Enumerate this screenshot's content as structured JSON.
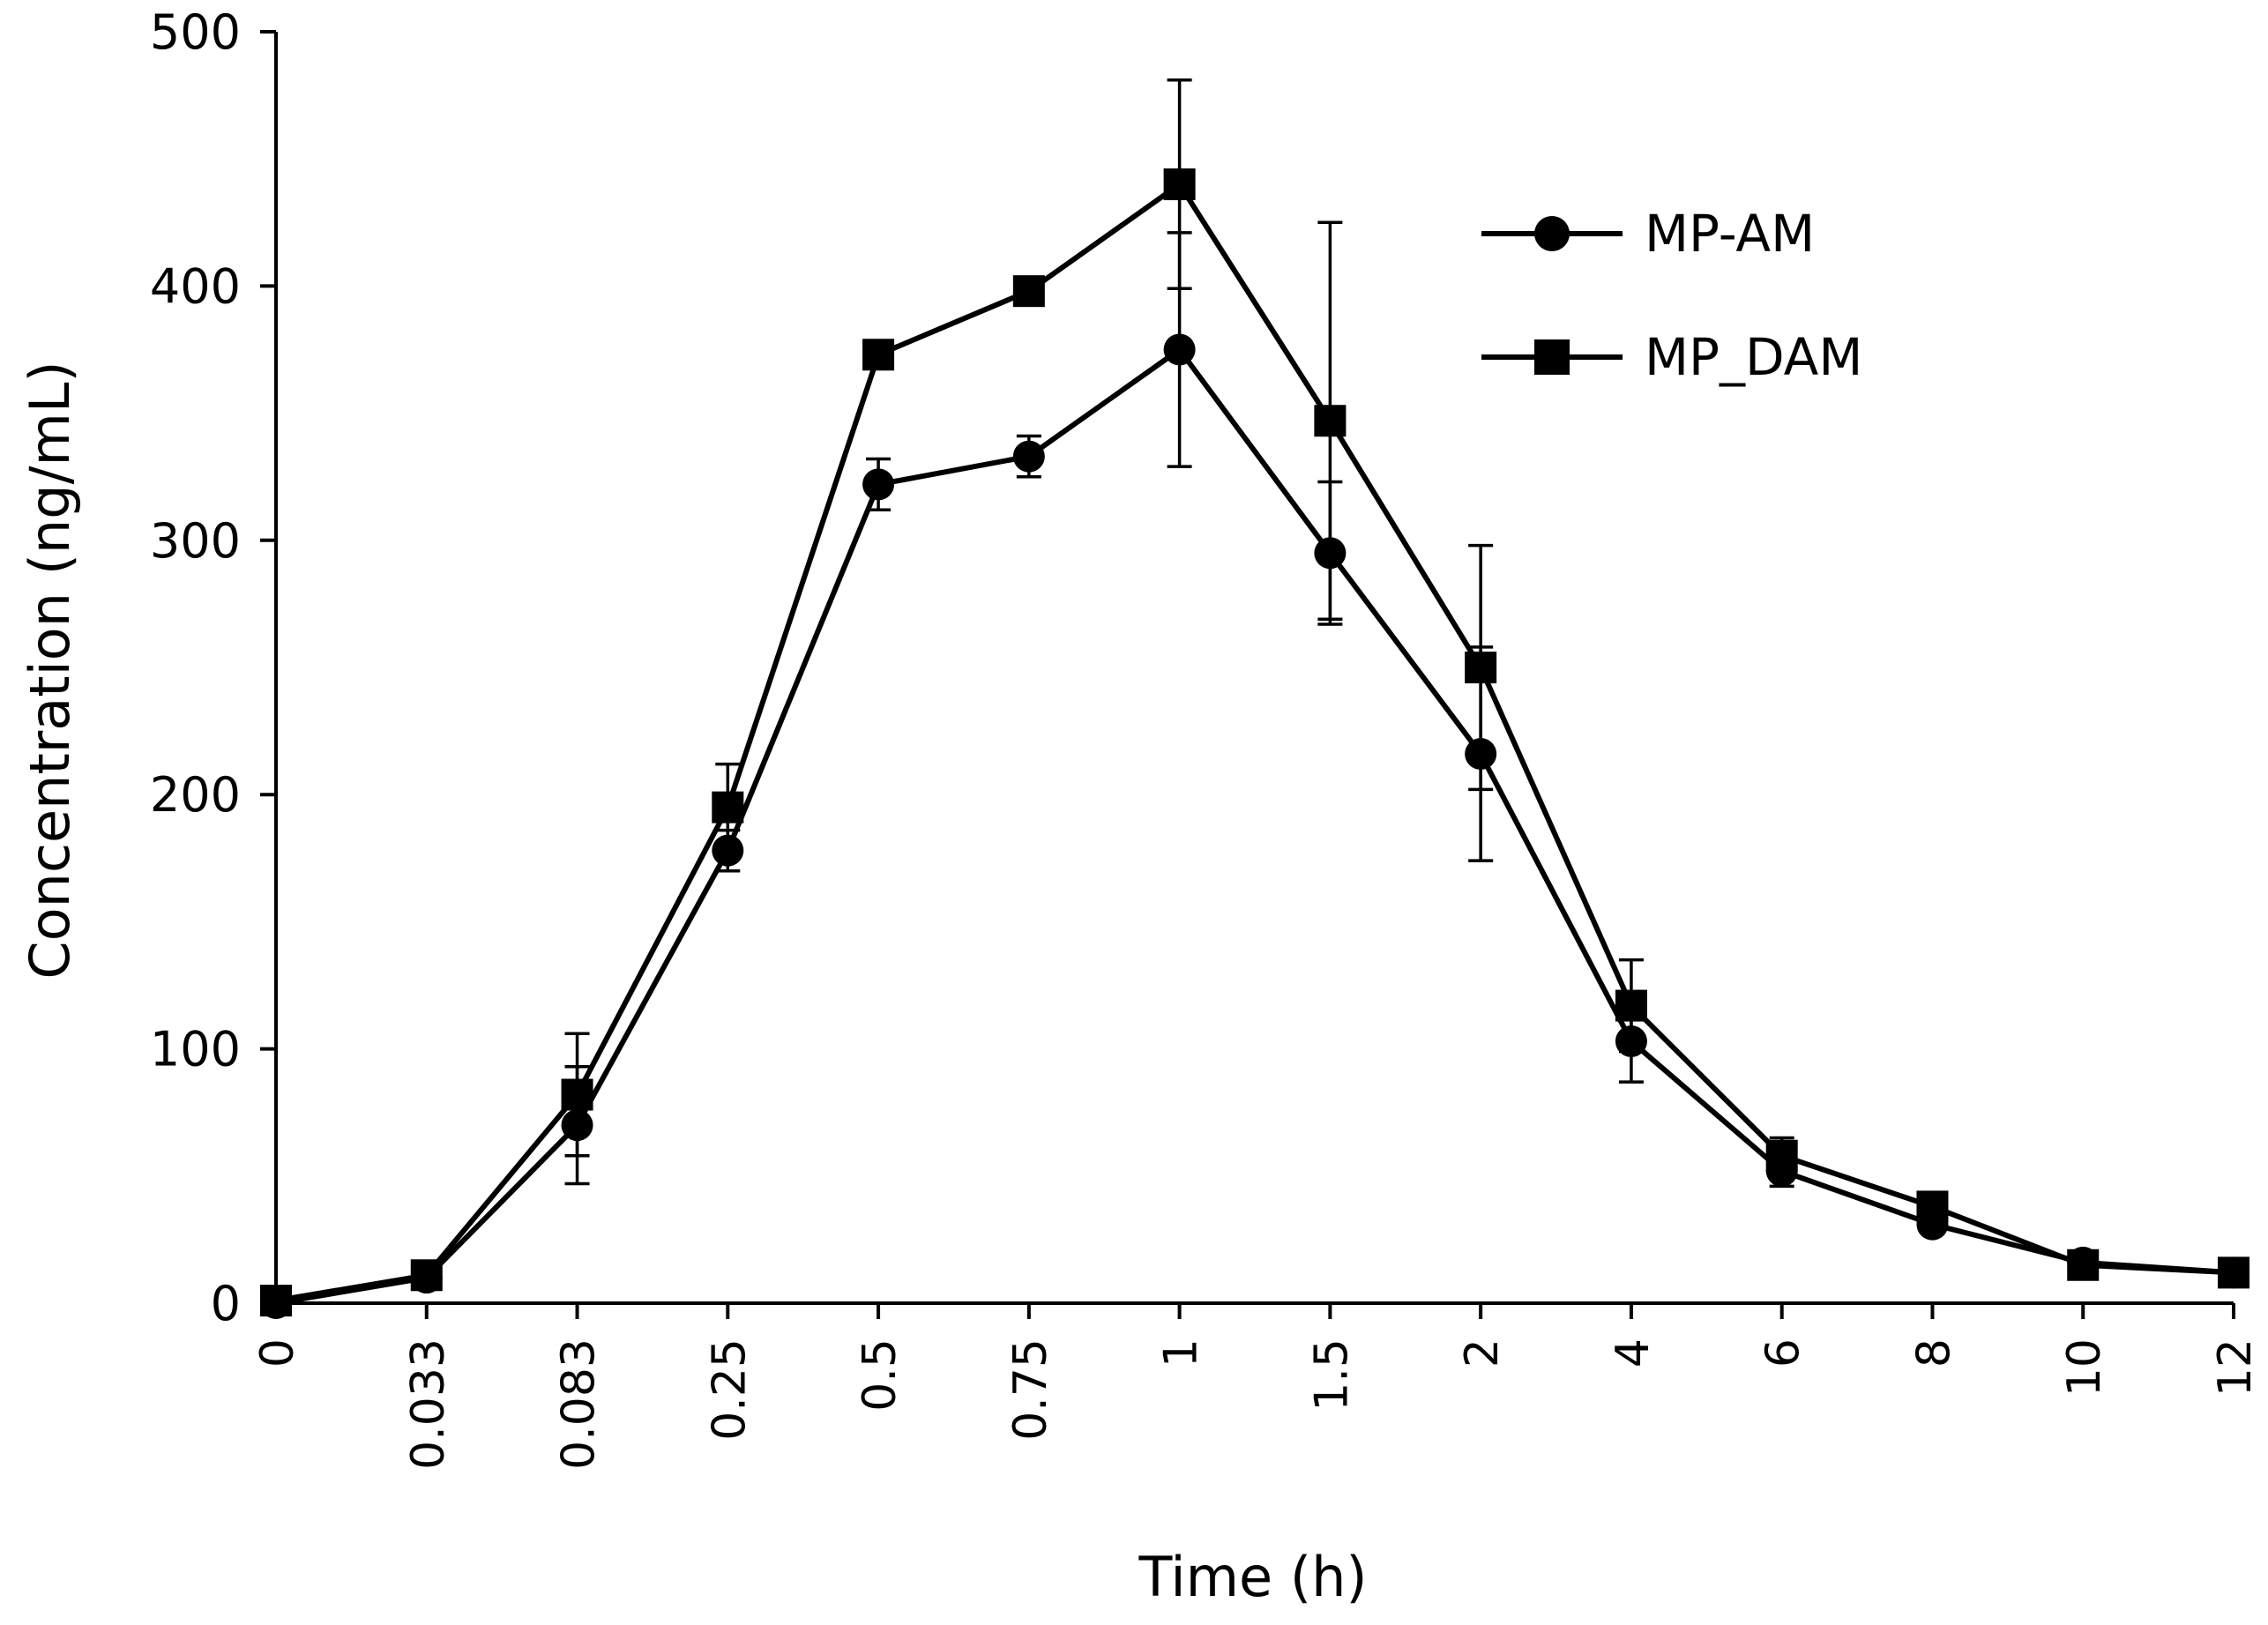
{
  "chart_data": {
    "type": "line",
    "title": "",
    "xlabel": "Time (h)",
    "ylabel": "Concentration (ng/mL)",
    "ylim": [
      0,
      500
    ],
    "yticks": [
      0,
      100,
      200,
      300,
      400,
      500
    ],
    "x_scale": "categorical",
    "categories": [
      "0",
      "0.033",
      "0.083",
      "0.25",
      "0.5",
      "0.75",
      "1",
      "1.5",
      "2",
      "4",
      "6",
      "8",
      "10",
      "12"
    ],
    "grid": false,
    "legend_position": "top-right",
    "series": [
      {
        "name": "MP-AM",
        "marker": "circle",
        "color": "#000000",
        "values": [
          0,
          10,
          70,
          178,
          322,
          333,
          375,
          295,
          216,
          103,
          52,
          31,
          16,
          12
        ],
        "errors": [
          0,
          2,
          23,
          8,
          10,
          8,
          46,
          28,
          42,
          16,
          6,
          3,
          2,
          1
        ]
      },
      {
        "name": "MP_DAM",
        "marker": "square",
        "color": "#000000",
        "values": [
          1,
          11,
          82,
          195,
          373,
          398,
          440,
          347,
          250,
          117,
          58,
          38,
          15,
          12
        ],
        "errors": [
          0,
          2,
          24,
          17,
          3,
          3,
          41,
          78,
          48,
          18,
          7,
          4,
          2,
          1
        ]
      }
    ]
  }
}
